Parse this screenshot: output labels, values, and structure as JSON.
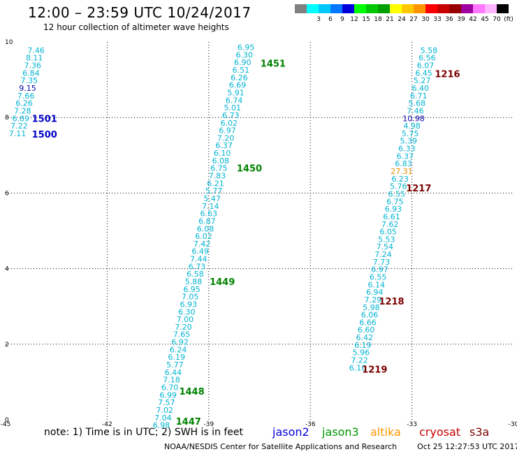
{
  "header": {
    "title": "12:00 – 23:59 UTC 10/24/2017",
    "subtitle": "12 hour collection of altimeter wave heights"
  },
  "legend": {
    "swatches": [
      {
        "color": "#808080",
        "label": ""
      },
      {
        "color": "#00ffff",
        "label": "3"
      },
      {
        "color": "#00c8ff",
        "label": "6"
      },
      {
        "color": "#0078ff",
        "label": "9"
      },
      {
        "color": "#0000dc",
        "label": "12"
      },
      {
        "color": "#00ff00",
        "label": "15"
      },
      {
        "color": "#00c800",
        "label": "18"
      },
      {
        "color": "#00a000",
        "label": "21"
      },
      {
        "color": "#ffff00",
        "label": "24"
      },
      {
        "color": "#ffc800",
        "label": "27"
      },
      {
        "color": "#ff9600",
        "label": "30"
      },
      {
        "color": "#ff0000",
        "label": "33"
      },
      {
        "color": "#c80000",
        "label": "36"
      },
      {
        "color": "#960000",
        "label": "39"
      },
      {
        "color": "#a000a0",
        "label": "42"
      },
      {
        "color": "#ff78ff",
        "label": "45"
      },
      {
        "color": "#ffb4ff",
        "label": "70"
      },
      {
        "color": "#000000",
        "label": "(ft)"
      }
    ]
  },
  "axes": {
    "x_ticks": [
      "-45",
      "-42",
      "-39",
      "-36",
      "-33",
      "-30"
    ],
    "y_ticks": [
      "0",
      "2",
      "4",
      "6",
      "8",
      "10"
    ],
    "lon_range": [
      -45,
      -30
    ],
    "lat_range": [
      0,
      10
    ]
  },
  "colors": {
    "cyan_value": "#00b4d2",
    "light_cyan_value": "#00d2e6",
    "dark_blue_value": "#0000aa",
    "orange_value": "#e68c00",
    "time_green": "#008200",
    "time_blue": "#0000c8",
    "time_dark_red": "#7a0000"
  },
  "tracks": [
    {
      "name": "track-1",
      "points": [
        {
          "lon": -44.1,
          "lat": 9.78,
          "v": "7.46"
        },
        {
          "lon": -44.15,
          "lat": 9.58,
          "v": "8.11"
        },
        {
          "lon": -44.2,
          "lat": 9.38,
          "v": "7.36"
        },
        {
          "lon": -44.25,
          "lat": 9.18,
          "v": "6.84"
        },
        {
          "lon": -44.3,
          "lat": 8.98,
          "v": "7.35"
        },
        {
          "lon": -44.35,
          "lat": 8.78,
          "v": "9.15",
          "c": "dark"
        },
        {
          "lon": -44.4,
          "lat": 8.58,
          "v": "7.66"
        },
        {
          "lon": -44.45,
          "lat": 8.38,
          "v": "6.26"
        },
        {
          "lon": -44.5,
          "lat": 8.18,
          "v": "7.28"
        },
        {
          "lon": -44.55,
          "lat": 7.98,
          "v": "6.89"
        },
        {
          "lon": -44.6,
          "lat": 7.78,
          "v": "7.22"
        },
        {
          "lon": -44.65,
          "lat": 7.58,
          "v": "7.11"
        }
      ],
      "times": [
        {
          "lon": -43.85,
          "lat": 7.98,
          "t": "1501",
          "c": "blue"
        },
        {
          "lon": -43.85,
          "lat": 7.56,
          "t": "1500",
          "c": "blue"
        }
      ]
    },
    {
      "name": "track-2",
      "points": [
        {
          "lon": -37.9,
          "lat": 9.86,
          "v": "6.95"
        },
        {
          "lon": -37.95,
          "lat": 9.66,
          "v": "6.30"
        },
        {
          "lon": -38.0,
          "lat": 9.46,
          "v": "6.90"
        },
        {
          "lon": -38.05,
          "lat": 9.26,
          "v": "6.51"
        },
        {
          "lon": -38.1,
          "lat": 9.06,
          "v": "6.26"
        },
        {
          "lon": -38.15,
          "lat": 8.86,
          "v": "6.69"
        },
        {
          "lon": -38.2,
          "lat": 8.66,
          "v": "5.91"
        },
        {
          "lon": -38.25,
          "lat": 8.46,
          "v": "6.74"
        },
        {
          "lon": -38.3,
          "lat": 8.26,
          "v": "5.01"
        },
        {
          "lon": -38.35,
          "lat": 8.06,
          "v": "6.73"
        },
        {
          "lon": -38.4,
          "lat": 7.86,
          "v": "6.02"
        },
        {
          "lon": -38.45,
          "lat": 7.66,
          "v": "6.97"
        },
        {
          "lon": -38.5,
          "lat": 7.46,
          "v": "7.20"
        },
        {
          "lon": -38.55,
          "lat": 7.26,
          "v": "6.37"
        },
        {
          "lon": -38.6,
          "lat": 7.06,
          "v": "6.10"
        },
        {
          "lon": -38.65,
          "lat": 6.86,
          "v": "6.08"
        },
        {
          "lon": -38.7,
          "lat": 6.66,
          "v": "6.75"
        },
        {
          "lon": -38.75,
          "lat": 6.46,
          "v": "7.83"
        },
        {
          "lon": -38.8,
          "lat": 6.26,
          "v": "6.21"
        },
        {
          "lon": -38.85,
          "lat": 6.06,
          "v": "5.77"
        },
        {
          "lon": -38.9,
          "lat": 5.86,
          "v": "5.47"
        },
        {
          "lon": -38.95,
          "lat": 5.66,
          "v": "7.14"
        },
        {
          "lon": -39.0,
          "lat": 5.46,
          "v": "6.63"
        },
        {
          "lon": -39.05,
          "lat": 5.26,
          "v": "6.87"
        },
        {
          "lon": -39.1,
          "lat": 5.06,
          "v": "6.08"
        },
        {
          "lon": -39.15,
          "lat": 4.86,
          "v": "6.02"
        },
        {
          "lon": -39.2,
          "lat": 4.66,
          "v": "7.42"
        },
        {
          "lon": -39.25,
          "lat": 4.46,
          "v": "6.49"
        },
        {
          "lon": -39.3,
          "lat": 4.26,
          "v": "7.44"
        },
        {
          "lon": -39.35,
          "lat": 4.06,
          "v": "6.73"
        },
        {
          "lon": -39.4,
          "lat": 3.86,
          "v": "6.58"
        },
        {
          "lon": -39.45,
          "lat": 3.66,
          "v": "5.88"
        },
        {
          "lon": -39.5,
          "lat": 3.46,
          "v": "6.95"
        },
        {
          "lon": -39.55,
          "lat": 3.26,
          "v": "7.05"
        },
        {
          "lon": -39.6,
          "lat": 3.06,
          "v": "6.93"
        },
        {
          "lon": -39.65,
          "lat": 2.86,
          "v": "6.30"
        },
        {
          "lon": -39.7,
          "lat": 2.66,
          "v": "7.00"
        },
        {
          "lon": -39.75,
          "lat": 2.46,
          "v": "7.20"
        },
        {
          "lon": -39.8,
          "lat": 2.26,
          "v": "7.65"
        },
        {
          "lon": -39.85,
          "lat": 2.06,
          "v": "6.92"
        },
        {
          "lon": -39.9,
          "lat": 1.86,
          "v": "6.24"
        },
        {
          "lon": -39.95,
          "lat": 1.66,
          "v": "6.19"
        },
        {
          "lon": -40.0,
          "lat": 1.46,
          "v": "5.77"
        },
        {
          "lon": -40.05,
          "lat": 1.26,
          "v": "6.44"
        },
        {
          "lon": -40.1,
          "lat": 1.06,
          "v": "7.18"
        },
        {
          "lon": -40.15,
          "lat": 0.86,
          "v": "6.70"
        },
        {
          "lon": -40.2,
          "lat": 0.66,
          "v": "6.99"
        },
        {
          "lon": -40.25,
          "lat": 0.46,
          "v": "7.57"
        },
        {
          "lon": -40.3,
          "lat": 0.26,
          "v": "7.02"
        },
        {
          "lon": -40.35,
          "lat": 0.06,
          "v": "7.04"
        },
        {
          "lon": -40.4,
          "lat": -0.14,
          "v": "6.98"
        }
      ],
      "times": [
        {
          "lon": -37.1,
          "lat": 9.44,
          "t": "1451",
          "c": "green"
        },
        {
          "lon": -37.8,
          "lat": 6.66,
          "t": "1450",
          "c": "green"
        },
        {
          "lon": -38.6,
          "lat": 3.66,
          "t": "1449",
          "c": "green"
        },
        {
          "lon": -39.5,
          "lat": 0.76,
          "t": "1448",
          "c": "green"
        },
        {
          "lon": -39.6,
          "lat": -0.04,
          "t": "1447",
          "c": "green"
        }
      ]
    },
    {
      "name": "track-3",
      "points": [
        {
          "lon": -32.5,
          "lat": 9.78,
          "v": "5.58"
        },
        {
          "lon": -32.55,
          "lat": 9.58,
          "v": "6.56"
        },
        {
          "lon": -32.6,
          "lat": 9.38,
          "v": "6.07"
        },
        {
          "lon": -32.65,
          "lat": 9.18,
          "v": "6.45"
        },
        {
          "lon": -32.7,
          "lat": 8.98,
          "v": "5.27"
        },
        {
          "lon": -32.75,
          "lat": 8.78,
          "v": "6.40"
        },
        {
          "lon": -32.8,
          "lat": 8.58,
          "v": "6.71"
        },
        {
          "lon": -32.85,
          "lat": 8.38,
          "v": "5.68"
        },
        {
          "lon": -32.9,
          "lat": 8.18,
          "v": "7.46"
        },
        {
          "lon": -32.95,
          "lat": 7.98,
          "v": "10.98",
          "c": "dark"
        },
        {
          "lon": -33.0,
          "lat": 7.78,
          "v": "4.98"
        },
        {
          "lon": -33.05,
          "lat": 7.58,
          "v": "5.75"
        },
        {
          "lon": -33.1,
          "lat": 7.38,
          "v": "5.39"
        },
        {
          "lon": -33.15,
          "lat": 7.18,
          "v": "6.33"
        },
        {
          "lon": -33.2,
          "lat": 6.98,
          "v": "6.37"
        },
        {
          "lon": -33.25,
          "lat": 6.78,
          "v": "6.83"
        },
        {
          "lon": -33.3,
          "lat": 6.58,
          "v": "27.31",
          "c": "orange"
        },
        {
          "lon": -33.35,
          "lat": 6.38,
          "v": "6.23"
        },
        {
          "lon": -33.4,
          "lat": 6.18,
          "v": "5.76"
        },
        {
          "lon": -33.45,
          "lat": 5.98,
          "v": "6.55"
        },
        {
          "lon": -33.5,
          "lat": 5.78,
          "v": "6.75"
        },
        {
          "lon": -33.55,
          "lat": 5.58,
          "v": "6.93"
        },
        {
          "lon": -33.6,
          "lat": 5.38,
          "v": "6.61"
        },
        {
          "lon": -33.65,
          "lat": 5.18,
          "v": "7.62"
        },
        {
          "lon": -33.7,
          "lat": 4.98,
          "v": "6.05"
        },
        {
          "lon": -33.75,
          "lat": 4.78,
          "v": "5.53"
        },
        {
          "lon": -33.8,
          "lat": 4.58,
          "v": "7.54"
        },
        {
          "lon": -33.85,
          "lat": 4.38,
          "v": "7.24"
        },
        {
          "lon": -33.9,
          "lat": 4.18,
          "v": "7.73"
        },
        {
          "lon": -33.95,
          "lat": 3.98,
          "v": "6.97"
        },
        {
          "lon": -34.0,
          "lat": 3.78,
          "v": "6.55"
        },
        {
          "lon": -34.05,
          "lat": 3.58,
          "v": "6.14"
        },
        {
          "lon": -34.1,
          "lat": 3.38,
          "v": "6.94"
        },
        {
          "lon": -34.15,
          "lat": 3.18,
          "v": "7.29"
        },
        {
          "lon": -34.2,
          "lat": 2.98,
          "v": "5.98"
        },
        {
          "lon": -34.25,
          "lat": 2.78,
          "v": "6.06"
        },
        {
          "lon": -34.3,
          "lat": 2.58,
          "v": "6.66"
        },
        {
          "lon": -34.35,
          "lat": 2.38,
          "v": "6.60"
        },
        {
          "lon": -34.4,
          "lat": 2.18,
          "v": "6.42"
        },
        {
          "lon": -34.45,
          "lat": 1.98,
          "v": "6.19"
        },
        {
          "lon": -34.5,
          "lat": 1.78,
          "v": "5.96"
        },
        {
          "lon": -34.55,
          "lat": 1.58,
          "v": "7.22"
        },
        {
          "lon": -34.6,
          "lat": 1.38,
          "v": "6.10"
        }
      ],
      "times": [
        {
          "lon": -31.95,
          "lat": 9.16,
          "t": "1216",
          "c": "darkred"
        },
        {
          "lon": -32.8,
          "lat": 6.14,
          "t": "1217",
          "c": "darkred"
        },
        {
          "lon": -33.6,
          "lat": 3.14,
          "t": "1218",
          "c": "darkred"
        },
        {
          "lon": -34.1,
          "lat": 1.34,
          "t": "1219",
          "c": "darkred"
        }
      ]
    }
  ],
  "footer": {
    "note": "note: 1) Time is in UTC; 2) SWH is in feet",
    "credit": "NOAA/NESDIS Center for Satellite Applications and Research",
    "generated": "Oct 25 12:27:53 UTC 2017",
    "satellites": [
      {
        "name": "jason2",
        "color": "#0000dc"
      },
      {
        "name": "jason3",
        "color": "#009600"
      },
      {
        "name": "altika",
        "color": "#ff9600"
      },
      {
        "name": "cryosat",
        "color": "#c80000"
      },
      {
        "name": "s3a",
        "color": "#7a0000"
      }
    ]
  }
}
